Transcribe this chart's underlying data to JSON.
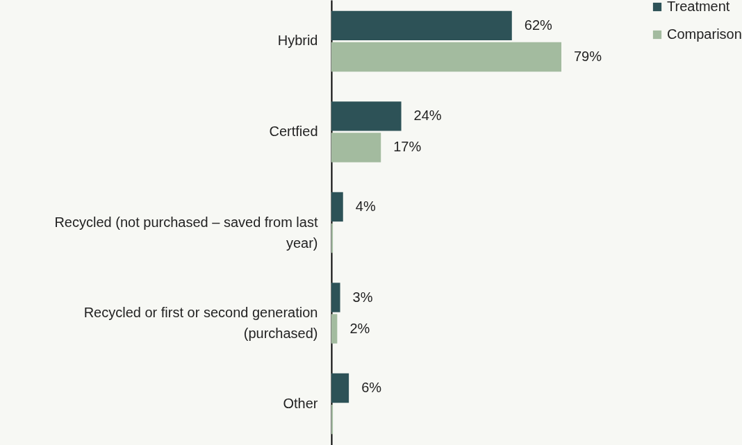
{
  "chart_data": {
    "type": "bar",
    "orientation": "horizontal",
    "categories": [
      "Hybrid",
      "Certfied",
      "Recycled (not purchased – saved from last year)",
      "Recycled or first or second generation (purchased)",
      "Other"
    ],
    "series": [
      {
        "name": "Treatment",
        "color": "#2d5257",
        "values": [
          62,
          24,
          4,
          3,
          6
        ],
        "value_labels": [
          "62%",
          "24%",
          "4%",
          "3%",
          "6%"
        ]
      },
      {
        "name": "Comparison",
        "color": "#a3bb9f",
        "values": [
          79,
          17,
          0.5,
          2,
          0.5
        ],
        "value_labels": [
          "79%",
          "17%",
          null,
          "2%",
          null
        ]
      }
    ],
    "legend": "top right"
  }
}
